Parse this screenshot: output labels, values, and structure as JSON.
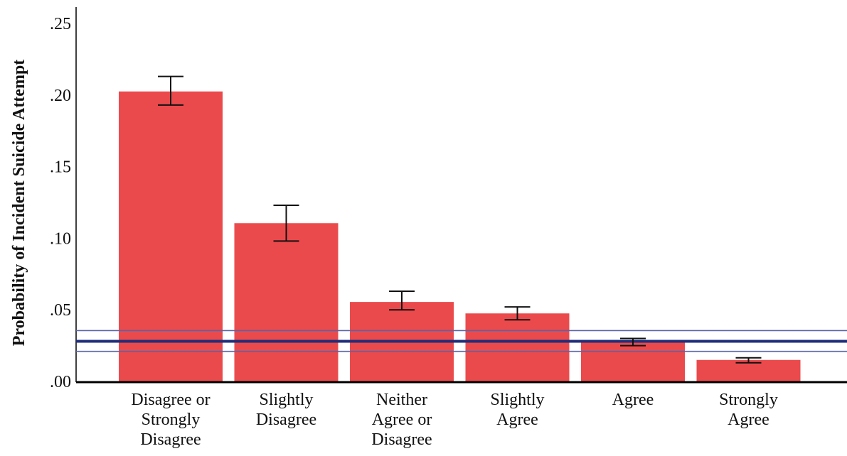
{
  "chart_data": {
    "type": "bar",
    "title": "",
    "xlabel": "",
    "ylabel": "Probability of Incident Suicide Attempt",
    "ylim": [
      0,
      0.26
    ],
    "yticks": [
      0,
      0.05,
      0.1,
      0.15,
      0.2,
      0.25
    ],
    "ytick_labels": [
      ".00",
      ".05",
      ".10",
      ".15",
      ".20",
      ".25"
    ],
    "grid": false,
    "legend": "none",
    "categories": [
      [
        "Disagree or",
        "Strongly",
        "Disagree"
      ],
      [
        "Slightly",
        "Disagree"
      ],
      [
        "Neither",
        "Agree or",
        "Disagree"
      ],
      [
        "Slightly",
        "Agree"
      ],
      [
        "Agree"
      ],
      [
        "Strongly",
        "Agree"
      ]
    ],
    "values": [
      0.2025,
      0.1105,
      0.0555,
      0.0475,
      0.0275,
      0.015
    ],
    "error_low": [
      0.193,
      0.098,
      0.05,
      0.043,
      0.025,
      0.013
    ],
    "error_high": [
      0.213,
      0.123,
      0.063,
      0.052,
      0.03,
      0.0165
    ],
    "reference_lines": [
      {
        "value": 0.0355,
        "style": "thin"
      },
      {
        "value": 0.028,
        "style": "thick"
      },
      {
        "value": 0.021,
        "style": "thin"
      }
    ],
    "colors": {
      "bar": "#EB4A4C",
      "error_bar": "#111111",
      "reference_line": "#1F2D7A",
      "reference_line_light": "#5A64A8",
      "axis": "#000000"
    }
  }
}
